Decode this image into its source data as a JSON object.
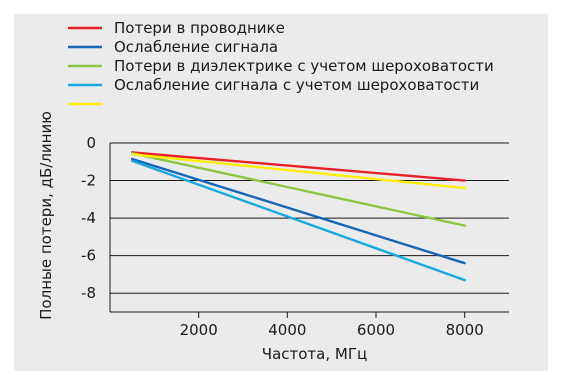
{
  "chart_data": {
    "type": "line",
    "xlabel": "Частота, МГц",
    "ylabel": "Полные потери, дБ/линию",
    "xlim": [
      0,
      9000
    ],
    "ylim": [
      -9,
      0
    ],
    "xticks": [
      2000,
      4000,
      6000,
      8000
    ],
    "yticks": [
      0,
      -2,
      -4,
      -6,
      -8
    ],
    "grid": "horizontal",
    "legend": "top",
    "series": [
      {
        "name": "Потери в проводнике",
        "color": "#e8202a",
        "x": [
          500,
          8000
        ],
        "y": [
          -0.5,
          -2.0
        ]
      },
      {
        "name": "Ослабление сигнала",
        "color": "#1565b8",
        "x": [
          500,
          8000
        ],
        "y": [
          -0.85,
          -6.4
        ]
      },
      {
        "name": "Потери в диэлектрике с учетом шероховатости",
        "color": "#8fc63f",
        "x": [
          500,
          8000
        ],
        "y": [
          -0.55,
          -4.4
        ]
      },
      {
        "name": "Ослабление сигнала с учетом шероховатости",
        "color": "#17a9e1",
        "x": [
          500,
          8000
        ],
        "y": [
          -0.95,
          -7.3
        ]
      },
      {
        "name": "",
        "color": "#ffee00",
        "x": [
          500,
          8000
        ],
        "y": [
          -0.6,
          -2.4
        ]
      }
    ]
  }
}
